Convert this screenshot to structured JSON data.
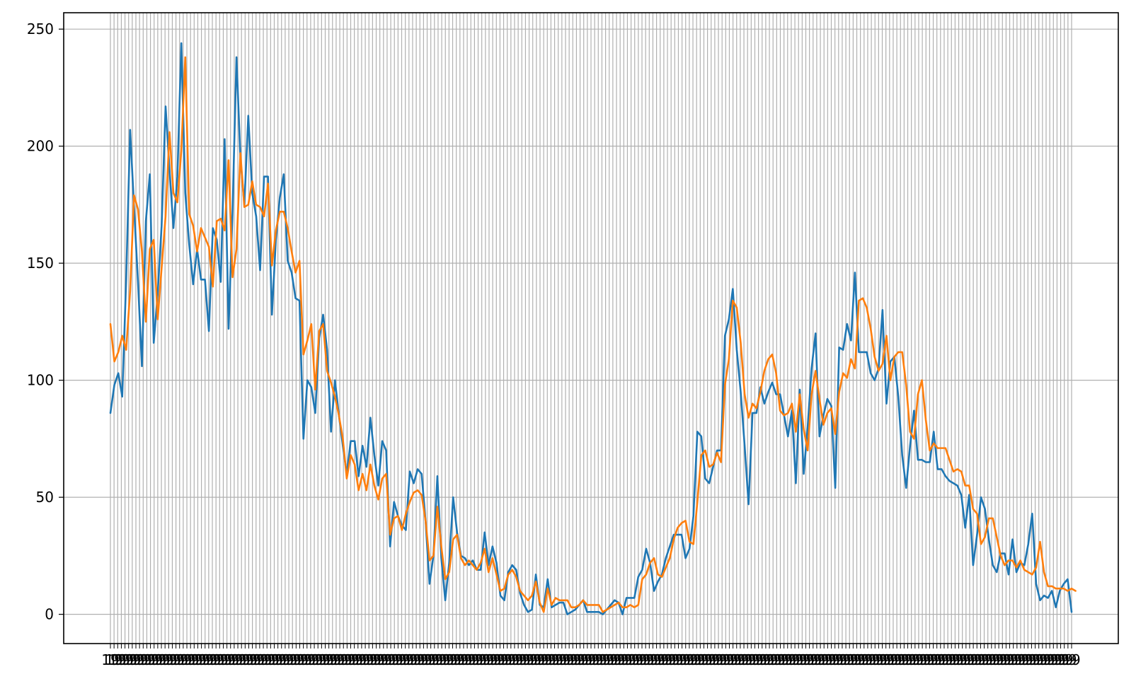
{
  "chart_data": {
    "type": "line",
    "title": "",
    "xlabel": "",
    "ylabel": "",
    "x_tick_count": 265,
    "x_tick_label_sample": "19",
    "ylim": [
      -12.5,
      257
    ],
    "yticks": [
      0,
      50,
      100,
      150,
      200,
      250
    ],
    "ytick_labels": [
      "0",
      "50",
      "100",
      "150",
      "200",
      "250"
    ],
    "grid": true,
    "legend": "none",
    "colors": {
      "series_1": "#1f77b4",
      "series_2": "#ff7f0e",
      "grid": "#b0b0b0",
      "axes": "#000000"
    },
    "series": [
      {
        "values": [
          86,
          98,
          103,
          93,
          143,
          207,
          174,
          142,
          106,
          168,
          188,
          116,
          137,
          166,
          217,
          190,
          165,
          187,
          244,
          180,
          158,
          141,
          156,
          143,
          143,
          121,
          165,
          160,
          142,
          203,
          122,
          172,
          238,
          195,
          175,
          213,
          180,
          170,
          147,
          187,
          187,
          128,
          160,
          178,
          188,
          151,
          146,
          135,
          134,
          75,
          100,
          97,
          86,
          118,
          128,
          113,
          78,
          100,
          85,
          72,
          60,
          74,
          74,
          59,
          72,
          63,
          84,
          68,
          55,
          74,
          70,
          29,
          48,
          42,
          38,
          36,
          61,
          56,
          62,
          60,
          40,
          13,
          25,
          59,
          24,
          6,
          22,
          50,
          35,
          25,
          24,
          21,
          23,
          19,
          19,
          35,
          21,
          29,
          22,
          8,
          6,
          18,
          21,
          19,
          9,
          4,
          1,
          2,
          17,
          4,
          3,
          15,
          3,
          4,
          5,
          5,
          0,
          1,
          2,
          4,
          6,
          1,
          1,
          1,
          1,
          0,
          2,
          4,
          6,
          5,
          0,
          7,
          7,
          7,
          16,
          19,
          28,
          22,
          10,
          14,
          17,
          24,
          29,
          34,
          34,
          34,
          24,
          28,
          42,
          78,
          76,
          58,
          56,
          63,
          70,
          70,
          119,
          126,
          139,
          113,
          95,
          72,
          47,
          86,
          86,
          97,
          90,
          95,
          99,
          94,
          94,
          85,
          76,
          87,
          56,
          96,
          60,
          80,
          105,
          120,
          76,
          85,
          92,
          89,
          54,
          114,
          113,
          124,
          117,
          146,
          112,
          112,
          112,
          103,
          100,
          105,
          130,
          90,
          108,
          110,
          93,
          68,
          54,
          72,
          87,
          66,
          66,
          65,
          65,
          78,
          62,
          62,
          59,
          57,
          56,
          55,
          51,
          37,
          51,
          21,
          34,
          50,
          45,
          32,
          21,
          18,
          26,
          26,
          17,
          32,
          18,
          22,
          21,
          30,
          43,
          13,
          6,
          8,
          7,
          10,
          3,
          10,
          13,
          15,
          1
        ]
      },
      {
        "values": [
          124,
          108,
          112,
          119,
          113,
          138,
          179,
          173,
          155,
          125,
          156,
          160,
          126,
          148,
          170,
          206,
          180,
          176,
          198,
          238,
          171,
          166,
          155,
          165,
          161,
          157,
          140,
          168,
          169,
          164,
          194,
          144,
          156,
          197,
          174,
          175,
          185,
          175,
          174,
          170,
          184,
          149,
          164,
          172,
          172,
          165,
          155,
          146,
          151,
          111,
          117,
          124,
          96,
          121,
          124,
          104,
          99,
          93,
          85,
          75,
          58,
          68,
          64,
          53,
          60,
          53,
          64,
          55,
          49,
          58,
          60,
          34,
          41,
          42,
          36,
          43,
          48,
          52,
          53,
          51,
          40,
          23,
          25,
          46,
          29,
          15,
          18,
          32,
          34,
          24,
          21,
          23,
          21,
          19,
          22,
          28,
          18,
          24,
          17,
          10,
          11,
          17,
          19,
          16,
          10,
          8,
          6,
          8,
          14,
          5,
          1,
          11,
          4,
          7,
          6,
          6,
          6,
          3,
          3,
          4,
          6,
          4,
          4,
          4,
          4,
          1,
          2,
          3,
          4,
          5,
          3,
          3,
          4,
          3,
          4,
          15,
          17,
          22,
          24,
          17,
          16,
          20,
          24,
          32,
          37,
          39,
          40,
          31,
          30,
          48,
          68,
          70,
          63,
          64,
          69,
          65,
          98,
          109,
          134,
          131,
          116,
          94,
          84,
          90,
          88,
          95,
          104,
          109,
          111,
          103,
          87,
          85,
          86,
          90,
          78,
          94,
          79,
          70,
          94,
          104,
          92,
          81,
          86,
          88,
          77,
          95,
          103,
          101,
          109,
          105,
          134,
          135,
          131,
          122,
          110,
          104,
          107,
          119,
          100,
          110,
          112,
          112,
          98,
          78,
          75,
          94,
          100,
          83,
          70,
          73,
          71,
          71,
          71,
          66,
          61,
          62,
          61,
          55,
          55,
          45,
          43,
          30,
          33,
          41,
          41,
          33,
          25,
          21,
          23,
          23,
          20,
          23,
          19,
          18,
          17,
          20,
          31,
          18,
          12,
          12,
          11,
          11,
          11,
          10,
          11,
          10
        ]
      }
    ]
  }
}
